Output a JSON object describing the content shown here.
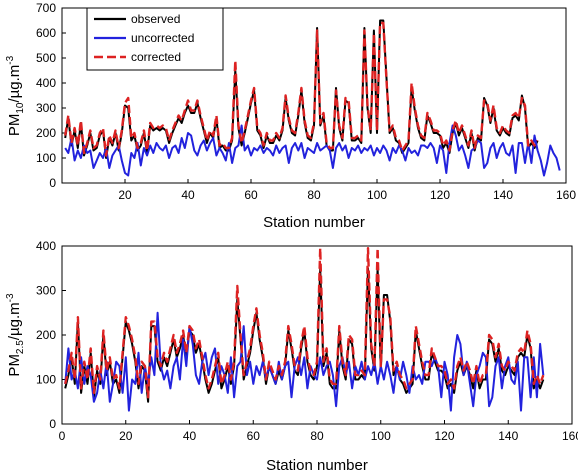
{
  "chart_data": [
    {
      "type": "line",
      "id": "pm10",
      "ylabel": {
        "base": "PM",
        "sub": "10",
        "rest": "/µg.m",
        "sup": "-3"
      },
      "xlabel": "Station number",
      "xlim": [
        0,
        160
      ],
      "ylim": [
        0,
        700
      ],
      "xticks": [
        20,
        40,
        60,
        80,
        100,
        120,
        140,
        160
      ],
      "yticks": [
        0,
        100,
        200,
        300,
        400,
        500,
        600,
        700
      ],
      "legend_position": "top-left",
      "series": [
        {
          "name": "observed",
          "color": "#000000",
          "dash": "solid",
          "values": [
            180,
            260,
            150,
            210,
            140,
            240,
            110,
            150,
            200,
            130,
            140,
            190,
            210,
            100,
            180,
            150,
            200,
            130,
            200,
            310,
            300,
            170,
            190,
            130,
            150,
            200,
            120,
            230,
            210,
            220,
            210,
            220,
            210,
            160,
            200,
            230,
            260,
            240,
            280,
            310,
            280,
            280,
            320,
            260,
            210,
            160,
            200,
            180,
            260,
            140,
            150,
            130,
            130,
            170,
            450,
            220,
            150,
            200,
            260,
            320,
            370,
            210,
            190,
            140,
            190,
            160,
            160,
            190,
            170,
            210,
            340,
            250,
            200,
            190,
            270,
            370,
            240,
            180,
            170,
            230,
            620,
            230,
            270,
            150,
            130,
            130,
            380,
            220,
            170,
            330,
            320,
            170,
            170,
            180,
            160,
            620,
            300,
            200,
            610,
            200,
            650,
            650,
            420,
            200,
            220,
            170,
            160,
            120,
            140,
            160,
            380,
            290,
            220,
            180,
            170,
            270,
            240,
            200,
            200,
            190,
            140,
            160,
            120,
            200,
            240,
            190,
            220,
            180,
            140,
            200,
            130,
            180,
            170,
            340,
            310,
            240,
            300,
            210,
            190,
            220,
            200,
            190,
            260,
            270,
            250,
            350,
            300,
            140,
            160,
            140,
            170
          ]
        },
        {
          "name": "uncorrected",
          "color": "#2222dd",
          "dash": "solid",
          "values": [
            140,
            120,
            180,
            90,
            130,
            100,
            150,
            120,
            130,
            60,
            90,
            120,
            100,
            140,
            60,
            110,
            130,
            150,
            90,
            40,
            30,
            120,
            100,
            160,
            70,
            140,
            110,
            150,
            120,
            160,
            140,
            130,
            150,
            100,
            140,
            150,
            120,
            180,
            140,
            200,
            190,
            130,
            110,
            150,
            170,
            130,
            160,
            180,
            110,
            140,
            120,
            90,
            160,
            80,
            140,
            150,
            230,
            130,
            150,
            110,
            140,
            130,
            150,
            120,
            140,
            130,
            110,
            150,
            120,
            140,
            150,
            80,
            140,
            160,
            130,
            160,
            100,
            140,
            130,
            120,
            160,
            130,
            140,
            150,
            130,
            60,
            140,
            160,
            130,
            150,
            100,
            140,
            130,
            150,
            120,
            140,
            130,
            150,
            110,
            140,
            120,
            150,
            130,
            90,
            140,
            120,
            150,
            130,
            90,
            140,
            120,
            130,
            110,
            150,
            150,
            140,
            160,
            140,
            80,
            150,
            130,
            40,
            160,
            230,
            190,
            130,
            150,
            110,
            60,
            130,
            140,
            170,
            160,
            60,
            80,
            140,
            160,
            100,
            140,
            160,
            120,
            110,
            150,
            40,
            160,
            160,
            80,
            160,
            80,
            190,
            130,
            90,
            30,
            80,
            150,
            120,
            100,
            50
          ]
        },
        {
          "name": "corrected",
          "color": "#dd2222",
          "dash": "dashed",
          "values": [
            190,
            270,
            160,
            220,
            150,
            250,
            120,
            160,
            210,
            140,
            150,
            200,
            220,
            110,
            190,
            160,
            210,
            140,
            210,
            320,
            340,
            180,
            200,
            140,
            160,
            210,
            130,
            240,
            220,
            230,
            220,
            230,
            220,
            170,
            210,
            240,
            270,
            250,
            290,
            330,
            290,
            290,
            330,
            270,
            220,
            170,
            210,
            190,
            270,
            150,
            160,
            140,
            140,
            180,
            490,
            230,
            160,
            210,
            270,
            330,
            380,
            220,
            200,
            150,
            200,
            170,
            170,
            200,
            180,
            220,
            350,
            260,
            210,
            200,
            280,
            380,
            250,
            190,
            180,
            240,
            610,
            240,
            280,
            160,
            140,
            140,
            370,
            230,
            180,
            340,
            330,
            180,
            180,
            190,
            170,
            610,
            310,
            210,
            600,
            210,
            640,
            640,
            410,
            210,
            230,
            180,
            170,
            130,
            150,
            170,
            400,
            300,
            230,
            190,
            180,
            280,
            250,
            210,
            210,
            200,
            150,
            170,
            130,
            210,
            250,
            200,
            230,
            190,
            150,
            210,
            140,
            190,
            180,
            330,
            320,
            250,
            310,
            220,
            200,
            230,
            210,
            200,
            270,
            280,
            260,
            340,
            310,
            150,
            170,
            150,
            170
          ]
        }
      ]
    },
    {
      "type": "line",
      "id": "pm25",
      "ylabel": {
        "base": "PM",
        "sub": "2.5",
        "rest": "/µg.m",
        "sup": "-3"
      },
      "xlabel": "Station number",
      "xlim": [
        0,
        160
      ],
      "ylim": [
        0,
        400
      ],
      "xticks": [
        0,
        20,
        40,
        60,
        80,
        100,
        120,
        140,
        160
      ],
      "yticks": [
        0,
        100,
        200,
        300,
        400
      ],
      "series": [
        {
          "name": "observed",
          "color": "#000000",
          "dash": "solid",
          "values": [
            80,
            110,
            150,
            90,
            230,
            70,
            130,
            90,
            160,
            60,
            120,
            90,
            200,
            110,
            140,
            90,
            100,
            70,
            150,
            230,
            210,
            180,
            140,
            80,
            130,
            120,
            50,
            220,
            220,
            140,
            120,
            150,
            130,
            160,
            190,
            150,
            170,
            200,
            150,
            210,
            200,
            160,
            180,
            140,
            100,
            70,
            90,
            120,
            150,
            80,
            100,
            130,
            90,
            130,
            280,
            190,
            100,
            130,
            160,
            210,
            250,
            190,
            150,
            90,
            130,
            110,
            90,
            120,
            100,
            130,
            210,
            170,
            120,
            110,
            170,
            210,
            140,
            110,
            100,
            130,
            350,
            130,
            160,
            90,
            80,
            80,
            210,
            130,
            100,
            190,
            180,
            100,
            100,
            110,
            100,
            350,
            170,
            120,
            350,
            120,
            290,
            290,
            230,
            110,
            130,
            100,
            90,
            70,
            80,
            90,
            210,
            170,
            130,
            100,
            100,
            160,
            140,
            120,
            120,
            110,
            80,
            90,
            70,
            120,
            140,
            110,
            130,
            110,
            80,
            120,
            80,
            100,
            100,
            190,
            180,
            140,
            170,
            120,
            110,
            130,
            120,
            110,
            150,
            160,
            150,
            200,
            170,
            80,
            100,
            80,
            100
          ]
        },
        {
          "name": "uncorrected",
          "color": "#2222dd",
          "dash": "solid",
          "values": [
            90,
            170,
            100,
            120,
            80,
            150,
            90,
            130,
            110,
            50,
            70,
            120,
            80,
            140,
            50,
            90,
            140,
            130,
            70,
            150,
            30,
            100,
            90,
            160,
            70,
            130,
            90,
            150,
            110,
            250,
            130,
            100,
            120,
            80,
            130,
            150,
            100,
            190,
            130,
            220,
            180,
            110,
            90,
            140,
            160,
            110,
            150,
            170,
            90,
            130,
            110,
            70,
            150,
            60,
            130,
            140,
            220,
            110,
            140,
            90,
            130,
            110,
            140,
            100,
            130,
            110,
            90,
            140,
            100,
            130,
            140,
            60,
            130,
            150,
            110,
            150,
            80,
            130,
            110,
            100,
            150,
            110,
            130,
            140,
            110,
            40,
            130,
            150,
            110,
            140,
            80,
            130,
            110,
            140,
            100,
            130,
            110,
            140,
            90,
            130,
            100,
            140,
            110,
            70,
            130,
            100,
            140,
            110,
            70,
            130,
            100,
            110,
            90,
            140,
            140,
            130,
            150,
            130,
            60,
            140,
            110,
            30,
            150,
            200,
            180,
            110,
            140,
            90,
            40,
            110,
            130,
            160,
            150,
            40,
            60,
            130,
            150,
            80,
            130,
            150,
            100,
            90,
            140,
            30,
            150,
            150,
            60,
            150,
            60,
            180,
            110
          ]
        },
        {
          "name": "corrected",
          "color": "#dd2222",
          "dash": "dashed",
          "values": [
            90,
            120,
            160,
            100,
            240,
            80,
            140,
            100,
            170,
            70,
            130,
            100,
            210,
            120,
            150,
            100,
            110,
            80,
            160,
            240,
            220,
            190,
            150,
            90,
            140,
            130,
            60,
            230,
            230,
            150,
            130,
            160,
            140,
            170,
            200,
            160,
            180,
            210,
            160,
            220,
            210,
            170,
            190,
            150,
            110,
            80,
            100,
            130,
            160,
            90,
            110,
            140,
            100,
            140,
            310,
            200,
            110,
            140,
            170,
            220,
            260,
            200,
            160,
            100,
            140,
            120,
            100,
            130,
            110,
            140,
            220,
            180,
            130,
            120,
            180,
            220,
            150,
            120,
            110,
            140,
            395,
            140,
            170,
            100,
            90,
            90,
            220,
            140,
            110,
            200,
            190,
            110,
            110,
            120,
            110,
            395,
            180,
            130,
            395,
            130,
            280,
            280,
            240,
            120,
            140,
            110,
            100,
            80,
            90,
            100,
            220,
            180,
            140,
            110,
            110,
            170,
            150,
            130,
            130,
            120,
            90,
            100,
            80,
            130,
            150,
            120,
            140,
            120,
            90,
            130,
            90,
            110,
            110,
            200,
            190,
            150,
            180,
            130,
            120,
            140,
            130,
            120,
            160,
            170,
            160,
            210,
            180,
            90,
            110,
            90,
            110
          ]
        }
      ]
    }
  ]
}
